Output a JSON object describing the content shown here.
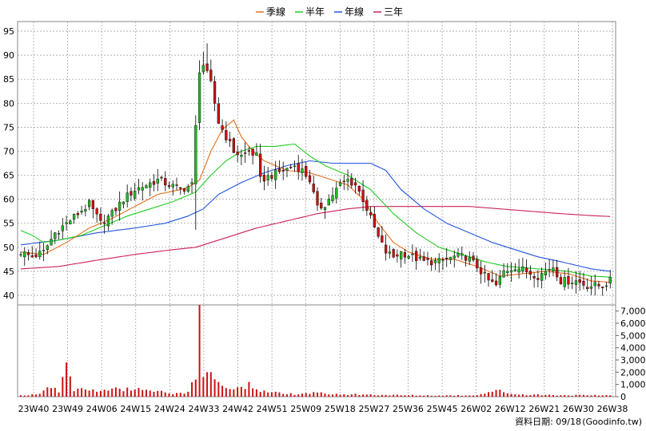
{
  "chart_data": {
    "type": "candlestick",
    "legend": {
      "placement": "top-center",
      "items": [
        {
          "name": "季線",
          "color": "#e07020"
        },
        {
          "name": "半年",
          "color": "#22cc22"
        },
        {
          "name": "年線",
          "color": "#2255dd"
        },
        {
          "name": "三年",
          "color": "#cc2255"
        }
      ]
    },
    "price_axis": {
      "ticks": [
        "95",
        "90",
        "85",
        "80",
        "75",
        "70",
        "65",
        "60",
        "55",
        "50",
        "45",
        "40"
      ],
      "ylim": [
        38,
        97
      ]
    },
    "volume_axis": {
      "ticks": [
        "7,000",
        "6,000",
        "5,000",
        "4,000",
        "3,000",
        "2,000",
        "1,000",
        "0"
      ],
      "ylim": [
        0,
        7500
      ]
    },
    "x_ticks": [
      "23W40",
      "23W49",
      "24W06",
      "24W15",
      "24W24",
      "24W33",
      "24W42",
      "24W51",
      "25W09",
      "25W18",
      "25W27",
      "25W36",
      "25W45",
      "26W02",
      "26W12",
      "26W21",
      "26W30",
      "26W38"
    ],
    "grid": "dashed",
    "candle_colors": {
      "up": "#22bb22",
      "down": "#cc1111",
      "volume": "#cc1111"
    },
    "close_anchors": [
      [
        0,
        49
      ],
      [
        3,
        48
      ],
      [
        6,
        49
      ],
      [
        9,
        53
      ],
      [
        12,
        55
      ],
      [
        15,
        57
      ],
      [
        18,
        59
      ],
      [
        21,
        55
      ],
      [
        24,
        57
      ],
      [
        27,
        60
      ],
      [
        30,
        62
      ],
      [
        33,
        63
      ],
      [
        36,
        64
      ],
      [
        39,
        63
      ],
      [
        42,
        62
      ],
      [
        45,
        63
      ],
      [
        46,
        75
      ],
      [
        47,
        87
      ],
      [
        48,
        88
      ],
      [
        50,
        84
      ],
      [
        52,
        76
      ],
      [
        54,
        73
      ],
      [
        56,
        70
      ],
      [
        58,
        69
      ],
      [
        60,
        70
      ],
      [
        62,
        69
      ],
      [
        63,
        64
      ],
      [
        66,
        65
      ],
      [
        69,
        66
      ],
      [
        72,
        67
      ],
      [
        74,
        66
      ],
      [
        76,
        64
      ],
      [
        78,
        58
      ],
      [
        80,
        59
      ],
      [
        82,
        61
      ],
      [
        84,
        63
      ],
      [
        86,
        64
      ],
      [
        88,
        63
      ],
      [
        90,
        60
      ],
      [
        92,
        56
      ],
      [
        94,
        52
      ],
      [
        96,
        49
      ],
      [
        98,
        48
      ],
      [
        100,
        49
      ],
      [
        103,
        48
      ],
      [
        106,
        47
      ],
      [
        110,
        47
      ],
      [
        114,
        48
      ],
      [
        117,
        48
      ],
      [
        120,
        46
      ],
      [
        123,
        43
      ],
      [
        125,
        42
      ],
      [
        127,
        45
      ],
      [
        130,
        46
      ],
      [
        133,
        45
      ],
      [
        136,
        44
      ],
      [
        140,
        46
      ],
      [
        142,
        43
      ],
      [
        146,
        43
      ],
      [
        149,
        42
      ],
      [
        153,
        42
      ],
      [
        155,
        43
      ]
    ],
    "volume_anchors": [
      [
        0,
        120
      ],
      [
        4,
        180
      ],
      [
        8,
        700
      ],
      [
        10,
        350
      ],
      [
        12,
        2800
      ],
      [
        14,
        450
      ],
      [
        16,
        700
      ],
      [
        18,
        500
      ],
      [
        20,
        400
      ],
      [
        23,
        500
      ],
      [
        26,
        650
      ],
      [
        29,
        500
      ],
      [
        32,
        550
      ],
      [
        35,
        400
      ],
      [
        38,
        350
      ],
      [
        41,
        300
      ],
      [
        44,
        400
      ],
      [
        46,
        1400
      ],
      [
        47,
        7800
      ],
      [
        48,
        1600
      ],
      [
        49,
        2000
      ],
      [
        50,
        2000
      ],
      [
        52,
        1200
      ],
      [
        54,
        700
      ],
      [
        56,
        600
      ],
      [
        58,
        800
      ],
      [
        60,
        1200
      ],
      [
        62,
        600
      ],
      [
        65,
        350
      ],
      [
        70,
        200
      ],
      [
        75,
        300
      ],
      [
        80,
        250
      ],
      [
        85,
        200
      ],
      [
        90,
        180
      ],
      [
        95,
        150
      ],
      [
        100,
        120
      ],
      [
        110,
        100
      ],
      [
        120,
        120
      ],
      [
        125,
        550
      ],
      [
        130,
        200
      ],
      [
        140,
        130
      ],
      [
        150,
        110
      ],
      [
        155,
        120
      ]
    ],
    "ma_quarter": [
      [
        0,
        49
      ],
      [
        6,
        48.5
      ],
      [
        12,
        51
      ],
      [
        18,
        54
      ],
      [
        24,
        56
      ],
      [
        30,
        58.5
      ],
      [
        36,
        61
      ],
      [
        42,
        62
      ],
      [
        44,
        62.5
      ],
      [
        47,
        64
      ],
      [
        50,
        70
      ],
      [
        53,
        74.5
      ],
      [
        56,
        76.5
      ],
      [
        58,
        73
      ],
      [
        61,
        70
      ],
      [
        64,
        68
      ],
      [
        70,
        66
      ],
      [
        76,
        65.5
      ],
      [
        80,
        64.5
      ],
      [
        86,
        63
      ],
      [
        90,
        60
      ],
      [
        94,
        55
      ],
      [
        98,
        51
      ],
      [
        102,
        49
      ],
      [
        108,
        47.5
      ],
      [
        114,
        47.5
      ],
      [
        120,
        46
      ],
      [
        126,
        44
      ],
      [
        132,
        44.5
      ],
      [
        138,
        45
      ],
      [
        144,
        44.5
      ],
      [
        150,
        43
      ],
      [
        155,
        42.7
      ]
    ],
    "ma_half": [
      [
        0,
        53.5
      ],
      [
        3,
        52.5
      ],
      [
        6,
        51
      ],
      [
        10,
        51.5
      ],
      [
        16,
        52.5
      ],
      [
        22,
        54.5
      ],
      [
        28,
        56.5
      ],
      [
        34,
        58
      ],
      [
        40,
        59.5
      ],
      [
        46,
        61.5
      ],
      [
        50,
        65
      ],
      [
        54,
        68
      ],
      [
        58,
        70
      ],
      [
        62,
        71
      ],
      [
        67,
        71
      ],
      [
        72,
        71.5
      ],
      [
        76,
        69
      ],
      [
        80,
        67
      ],
      [
        86,
        65
      ],
      [
        92,
        62
      ],
      [
        98,
        57
      ],
      [
        104,
        53
      ],
      [
        110,
        50
      ],
      [
        116,
        48.5
      ],
      [
        122,
        47
      ],
      [
        128,
        46
      ],
      [
        136,
        45.5
      ],
      [
        144,
        45
      ],
      [
        150,
        44
      ],
      [
        155,
        43.8
      ]
    ],
    "ma_year": [
      [
        0,
        50.5
      ],
      [
        10,
        51.5
      ],
      [
        20,
        53
      ],
      [
        30,
        54
      ],
      [
        38,
        55
      ],
      [
        44,
        56.5
      ],
      [
        48,
        58
      ],
      [
        52,
        61
      ],
      [
        58,
        63.5
      ],
      [
        64,
        65.5
      ],
      [
        70,
        67
      ],
      [
        76,
        68
      ],
      [
        82,
        67.5
      ],
      [
        88,
        67.5
      ],
      [
        92,
        67.5
      ],
      [
        96,
        66
      ],
      [
        100,
        62
      ],
      [
        106,
        58
      ],
      [
        112,
        55
      ],
      [
        118,
        53
      ],
      [
        124,
        51
      ],
      [
        130,
        49.5
      ],
      [
        136,
        48
      ],
      [
        142,
        47
      ],
      [
        150,
        45.5
      ],
      [
        155,
        45
      ]
    ],
    "ma_3year": [
      [
        0,
        45.5
      ],
      [
        10,
        46
      ],
      [
        20,
        47.3
      ],
      [
        30,
        48.5
      ],
      [
        40,
        49.5
      ],
      [
        46,
        50
      ],
      [
        50,
        51
      ],
      [
        56,
        52.5
      ],
      [
        62,
        54
      ],
      [
        70,
        55.5
      ],
      [
        78,
        57
      ],
      [
        86,
        58
      ],
      [
        92,
        58.5
      ],
      [
        100,
        58.5
      ],
      [
        110,
        58.5
      ],
      [
        118,
        58.5
      ],
      [
        126,
        58
      ],
      [
        134,
        57.5
      ],
      [
        142,
        57
      ],
      [
        150,
        56.6
      ],
      [
        155,
        56.4
      ]
    ]
  },
  "footer": {
    "date_label": "資料日期: 09/18",
    "source": "(Goodinfo.tw)"
  }
}
